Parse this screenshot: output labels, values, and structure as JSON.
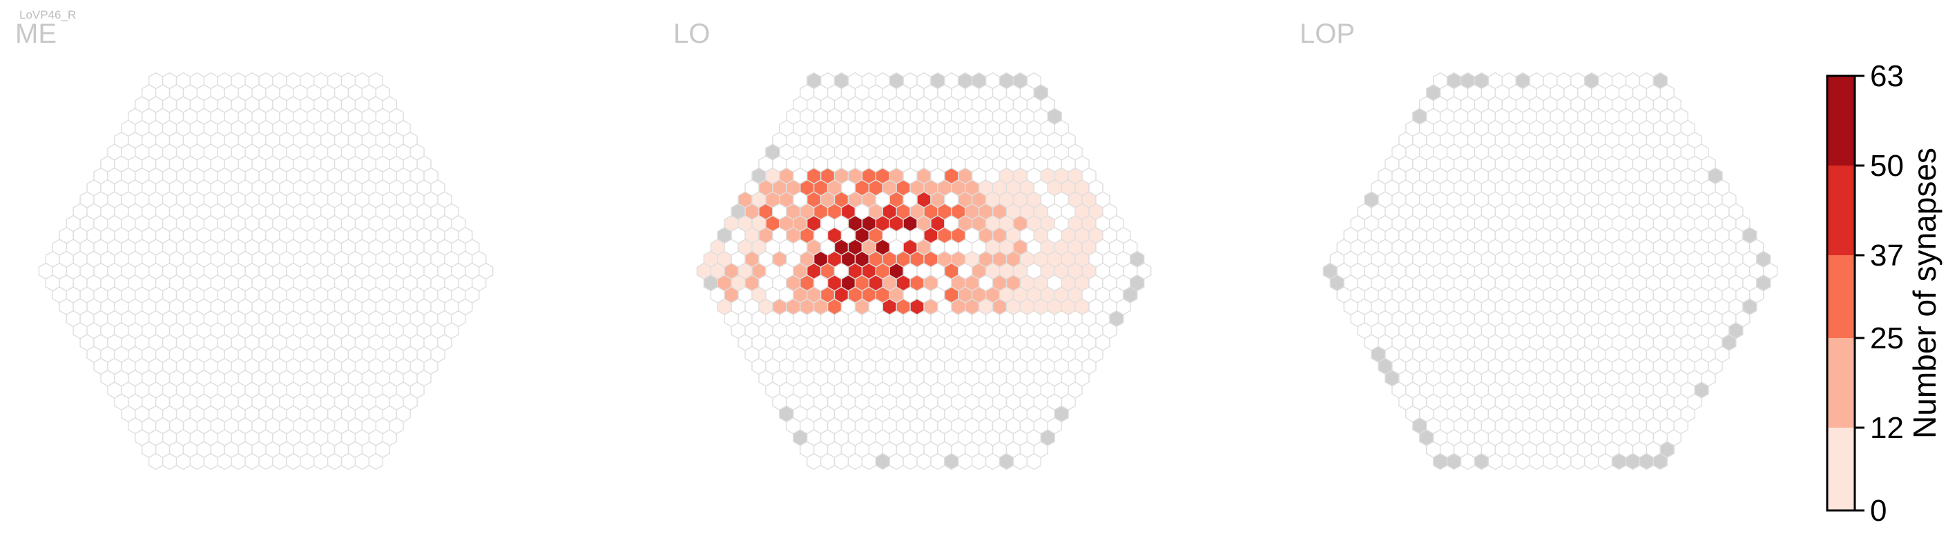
{
  "cell_type_label": "LoVP46_R",
  "chart_data": {
    "type": "heatmap",
    "title": "",
    "panels": [
      {
        "name": "ME",
        "title": "ME",
        "max_radius": 16,
        "center_hot": [
          0,
          0
        ],
        "spread": 0,
        "peak": 0,
        "gray_edges": false
      },
      {
        "name": "LO",
        "title": "LO",
        "max_radius": 16,
        "center_hot": [
          -3,
          -2
        ],
        "spread": 9,
        "peak": 63,
        "gray_edges": true
      },
      {
        "name": "LOP",
        "title": "LOP",
        "max_radius": 16,
        "center_hot": [
          0,
          0
        ],
        "spread": 0,
        "peak": 0,
        "gray_edges": true
      }
    ],
    "colorbar": {
      "label": "Number of synapses",
      "ticks": [
        "0",
        "12",
        "25",
        "37",
        "50",
        "63"
      ],
      "tick_values": [
        0,
        12,
        25,
        37,
        50,
        63
      ],
      "range": [
        0,
        63
      ],
      "colors": [
        "#fde5dc",
        "#fbb39c",
        "#f8704f",
        "#dd2b25",
        "#a50f15"
      ]
    },
    "colors": {
      "empty_cell": "#ffffff",
      "empty_stroke": "#dedede",
      "outside_cell": "#cfcfcf",
      "title": "#c8c8c8"
    }
  }
}
